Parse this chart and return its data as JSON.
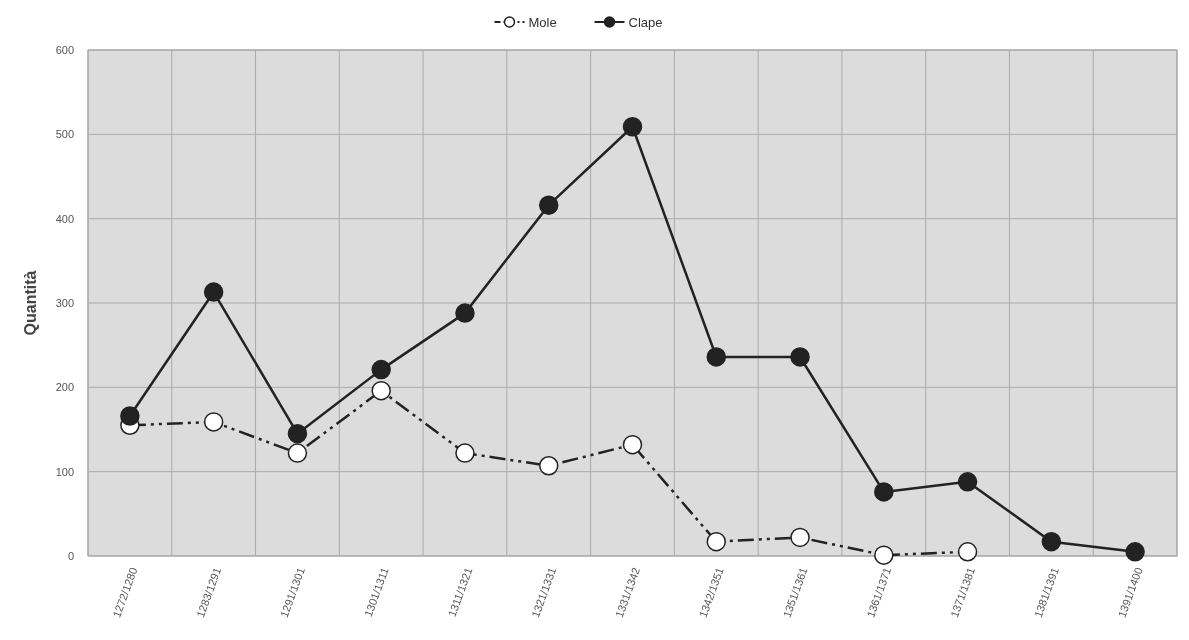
{
  "chart_data": {
    "type": "line",
    "ylabel": "Quantità",
    "categories": [
      "1272/1280",
      "1283/1291",
      "1291/1301",
      "1301/1311",
      "1311/1321",
      "1321/1331",
      "1331/1342",
      "1342/1351",
      "1351/1361",
      "1361/1371",
      "1371/1381",
      "1381/1391",
      "1391/1400"
    ],
    "series": [
      {
        "name": "Mole",
        "color": "#ffffff",
        "line_style": "dashed",
        "values": [
          155,
          159,
          122,
          196,
          122,
          107,
          132,
          17,
          22,
          1,
          5,
          null,
          null
        ]
      },
      {
        "name": "Clape",
        "color": "#222222",
        "line_style": "solid",
        "values": [
          166,
          313,
          145,
          221,
          288,
          416,
          509,
          236,
          236,
          76,
          88,
          17,
          5
        ]
      }
    ],
    "ylim": [
      0,
      600
    ],
    "yticks": [
      0,
      100,
      200,
      300,
      400,
      500,
      600
    ],
    "grid": true,
    "legend": "top",
    "marker": "circle"
  }
}
